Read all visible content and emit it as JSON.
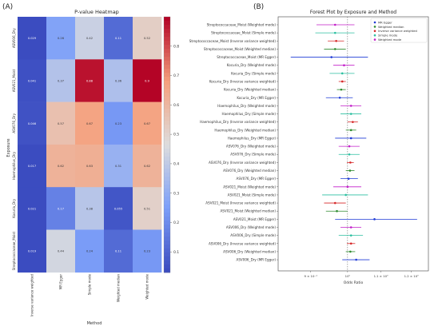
{
  "panels": {
    "a": "(A)",
    "b": "(B)"
  },
  "chart_data": [
    {
      "type": "heatmap",
      "title": "P-value Heatmap",
      "xlabel": "Method",
      "ylabel": "Exposure",
      "columns": [
        "Inverse variance weighted",
        "MR Egger",
        "Simple mode",
        "Weighted median",
        "Weighted mode"
      ],
      "rows": [
        "ASV006_Dry",
        "ASV021_Moist",
        "ASV076_Dry",
        "Haemophilus_Dry",
        "Kocuria_Dry",
        "Streptococcaceae_Moist"
      ],
      "values": [
        [
          0.029,
          0.26,
          0.42,
          0.11,
          0.52
        ],
        [
          0.041,
          0.37,
          0.88,
          0.36,
          0.9
        ],
        [
          0.046,
          0.57,
          0.67,
          0.23,
          0.67
        ],
        [
          0.017,
          0.62,
          0.63,
          0.31,
          0.62
        ],
        [
          0.021,
          0.17,
          0.38,
          0.055,
          0.51
        ],
        [
          0.019,
          0.44,
          0.24,
          0.11,
          0.23
        ]
      ],
      "colorbar": {
        "range": [
          0.03,
          0.9
        ],
        "ticks": [
          "0.1",
          "0.2",
          "0.3",
          "0.4",
          "0.5",
          "0.6",
          "0.7",
          "0.8"
        ]
      }
    },
    {
      "type": "scatter",
      "title": "Forest Plot by Exposure and Method",
      "xlabel": "Odds Ratio",
      "xscale": "log",
      "x_ticks": [
        {
          "label": "9 × 10⁻¹",
          "value": 0.9
        },
        {
          "label": "10⁰",
          "value": 1.0
        },
        {
          "label": "1.1 × 10⁰",
          "value": 1.1
        },
        {
          "label": "1.2 × 10⁰",
          "value": 1.2
        }
      ],
      "xlim": [
        0.82,
        1.26
      ],
      "reference_line": 1.0,
      "legend": [
        {
          "name": "MR Egger",
          "color": "#1f3bd6"
        },
        {
          "name": "Weighted median",
          "color": "#2e8b2e"
        },
        {
          "name": "Inverse variance weighted",
          "color": "#d62728"
        },
        {
          "name": "Simple mode",
          "color": "#2bbfa0"
        },
        {
          "name": "Weighted mode",
          "color": "#c21ec9"
        }
      ],
      "legend_position": "top-right",
      "rows": [
        {
          "label": "Streptococcaceae_Moist (Weighted mode)",
          "or": 0.965,
          "lo": 0.915,
          "hi": 1.02,
          "method": "Weighted mode"
        },
        {
          "label": "Streptococcaceae_Moist (Simple mode)",
          "or": 0.965,
          "lo": 0.912,
          "hi": 1.02,
          "method": "Simple mode"
        },
        {
          "label": "Streptococcaceae_Moist (Inverse variance weighted)",
          "or": 0.968,
          "lo": 0.945,
          "hi": 0.99,
          "method": "Inverse variance weighted"
        },
        {
          "label": "Streptococcaceae_Moist (Weighted median)",
          "or": 0.965,
          "lo": 0.935,
          "hi": 0.995,
          "method": "Weighted median"
        },
        {
          "label": "Streptococcaceae_Moist (MR Egger)",
          "or": 0.955,
          "lo": 0.85,
          "hi": 1.06,
          "method": "MR Egger"
        },
        {
          "label": "Kocuria_Dry (Weighted mode)",
          "or": 0.99,
          "lo": 0.96,
          "hi": 1.02,
          "method": "Weighted mode"
        },
        {
          "label": "Kocuria_Dry (Simple mode)",
          "or": 0.985,
          "lo": 0.95,
          "hi": 1.02,
          "method": "Simple mode"
        },
        {
          "label": "Kocuria_Dry (Inverse variance weighted)",
          "or": 0.985,
          "lo": 0.975,
          "hi": 0.995,
          "method": "Inverse variance weighted"
        },
        {
          "label": "Kocuria_Dry (Weighted median)",
          "or": 0.982,
          "lo": 0.97,
          "hi": 0.995,
          "method": "Weighted median"
        },
        {
          "label": "Kocuria_Dry (MR Egger)",
          "or": 0.978,
          "lo": 0.94,
          "hi": 1.015,
          "method": "MR Egger"
        },
        {
          "label": "Haemophilus_Dry (Weighted mode)",
          "or": 1.01,
          "lo": 0.98,
          "hi": 1.04,
          "method": "Weighted mode"
        },
        {
          "label": "Haemophilus_Dry (Simple mode)",
          "or": 1.01,
          "lo": 0.98,
          "hi": 1.04,
          "method": "Simple mode"
        },
        {
          "label": "Haemophilus_Dry (Inverse variance weighted)",
          "or": 1.015,
          "lo": 1.0,
          "hi": 1.03,
          "method": "Inverse variance weighted"
        },
        {
          "label": "Haemophilus_Dry (Weighted median)",
          "or": 1.01,
          "lo": 0.995,
          "hi": 1.025,
          "method": "Weighted median"
        },
        {
          "label": "Haemophilus_Dry (MR Egger)",
          "or": 1.01,
          "lo": 0.965,
          "hi": 1.055,
          "method": "MR Egger"
        },
        {
          "label": "ASV076_Dry (Weighted mode)",
          "or": 1.005,
          "lo": 0.975,
          "hi": 1.035,
          "method": "Weighted mode"
        },
        {
          "label": "ASV076_Dry (Simple mode)",
          "or": 1.005,
          "lo": 0.975,
          "hi": 1.035,
          "method": "Simple mode"
        },
        {
          "label": "ASV076_Dry (Inverse variance weighted)",
          "or": 1.008,
          "lo": 0.998,
          "hi": 1.018,
          "method": "Inverse variance weighted"
        },
        {
          "label": "ASV076_Dry (Weighted median)",
          "or": 1.007,
          "lo": 0.995,
          "hi": 1.02,
          "method": "Weighted median"
        },
        {
          "label": "ASV076_Dry (MR Egger)",
          "or": 1.003,
          "lo": 0.98,
          "hi": 1.03,
          "method": "MR Egger"
        },
        {
          "label": "ASV021_Moist (Weighted mode)",
          "or": 1.0,
          "lo": 0.96,
          "hi": 1.04,
          "method": "Weighted mode"
        },
        {
          "label": "ASV021_Moist (Simple mode)",
          "or": 0.995,
          "lo": 0.93,
          "hi": 1.06,
          "method": "Simple mode"
        },
        {
          "label": "ASV021_Moist (Inverse variance weighted)",
          "or": 0.965,
          "lo": 0.935,
          "hi": 0.995,
          "method": "Inverse variance weighted"
        },
        {
          "label": "ASV021_Moist (Weighted median)",
          "or": 0.97,
          "lo": 0.94,
          "hi": 1.0,
          "method": "Weighted median"
        },
        {
          "label": "ASV021_Moist (MR Egger)",
          "or": 1.08,
          "lo": 0.965,
          "hi": 1.22,
          "method": "MR Egger"
        },
        {
          "label": "ASV006_Dry (Weighted mode)",
          "or": 1.01,
          "lo": 0.98,
          "hi": 1.04,
          "method": "Weighted mode"
        },
        {
          "label": "ASV006_Dry (Simple mode)",
          "or": 1.01,
          "lo": 0.975,
          "hi": 1.045,
          "method": "Simple mode"
        },
        {
          "label": "ASV006_Dry (Inverse variance weighted)",
          "or": 1.01,
          "lo": 0.998,
          "hi": 1.022,
          "method": "Inverse variance weighted"
        },
        {
          "label": "ASV006_Dry (Weighted median)",
          "or": 1.008,
          "lo": 0.995,
          "hi": 1.022,
          "method": "Weighted median"
        },
        {
          "label": "ASV006_Dry (MR Egger)",
          "or": 1.025,
          "lo": 0.985,
          "hi": 1.065,
          "method": "MR Egger"
        }
      ]
    }
  ]
}
